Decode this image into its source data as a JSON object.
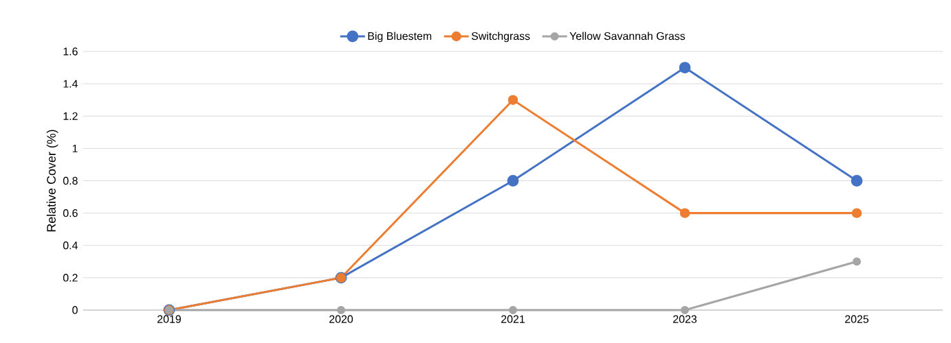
{
  "chart_data": {
    "type": "line",
    "ylabel": "Relative Cover (%)",
    "categories": [
      "2019",
      "2020",
      "2021",
      "2023",
      "2025"
    ],
    "series": [
      {
        "name": "Big Bluestem",
        "color": "#4472c4",
        "values": [
          0,
          0.2,
          0.8,
          1.5,
          0.8
        ]
      },
      {
        "name": "Switchgrass",
        "color": "#ed7d31",
        "values": [
          0,
          0.2,
          1.3,
          0.6,
          0.6
        ]
      },
      {
        "name": "Yellow Savannah Grass",
        "color": "#a5a5a5",
        "values": [
          0,
          0,
          0,
          0,
          0.3
        ]
      }
    ],
    "ylim": [
      0,
      1.6
    ],
    "yticks": [
      0,
      0.2,
      0.4,
      0.6,
      0.8,
      1,
      1.2,
      1.4,
      1.6
    ],
    "grid": "y",
    "legend": "top",
    "marker": "circle",
    "line_style": "solid"
  }
}
